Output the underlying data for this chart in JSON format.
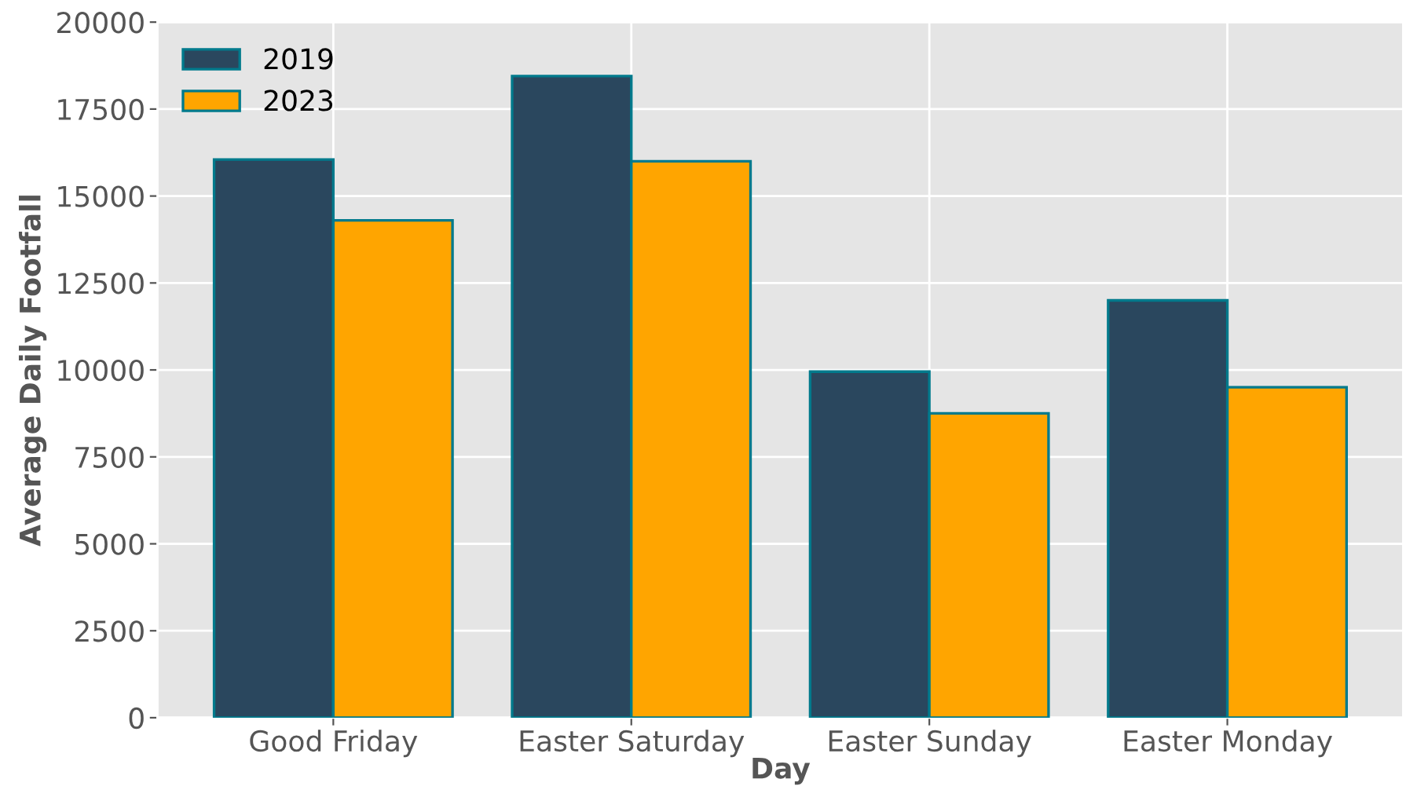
{
  "chart_data": {
    "type": "bar",
    "xlabel": "Day",
    "ylabel": "Average Daily Footfall",
    "categories": [
      "Good Friday",
      "Easter Saturday",
      "Easter Sunday",
      "Easter Monday"
    ],
    "series": [
      {
        "name": "2019",
        "color": "#2a475e",
        "values": [
          16050,
          18450,
          9950,
          12000
        ]
      },
      {
        "name": "2023",
        "color": "#ffa500",
        "values": [
          14300,
          16000,
          8750,
          9500
        ]
      }
    ],
    "ylim": [
      0,
      20000
    ],
    "yticks": [
      0,
      2500,
      5000,
      7500,
      10000,
      12500,
      15000,
      17500,
      20000
    ],
    "grid": true,
    "legend": "top left"
  }
}
